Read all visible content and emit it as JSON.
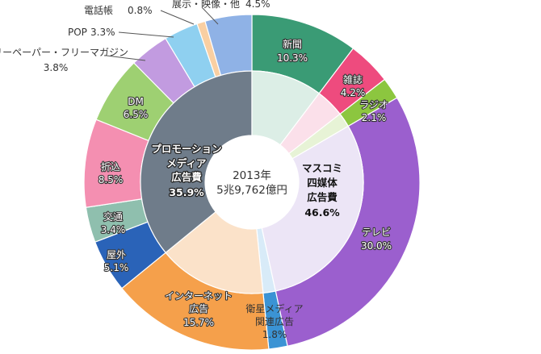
{
  "chart_data": {
    "type": "pie",
    "center_label": [
      "2013年",
      "5兆9,762億円"
    ],
    "outer": [
      {
        "name": "新聞",
        "value": 10.3,
        "color": "#3a9b75"
      },
      {
        "name": "雑誌",
        "value": 4.2,
        "color": "#ee4b7e"
      },
      {
        "name": "ラジオ",
        "value": 2.1,
        "color": "#8cc63f"
      },
      {
        "name": "テレビ",
        "value": 30.0,
        "color": "#9b5fce"
      },
      {
        "name": "衛星メディア関連広告",
        "value": 1.8,
        "color": "#3b93d4"
      },
      {
        "name": "インターネット広告",
        "value": 15.7,
        "color": "#f5a04b"
      },
      {
        "name": "屋外",
        "value": 5.1,
        "color": "#2a63b8"
      },
      {
        "name": "交通",
        "value": 3.4,
        "color": "#8fbfae"
      },
      {
        "name": "折込",
        "value": 8.5,
        "color": "#f48fb1"
      },
      {
        "name": "DM",
        "value": 6.5,
        "color": "#9ed072"
      },
      {
        "name": "フリーペーパー・フリーマガジン",
        "value": 3.8,
        "color": "#c29be0"
      },
      {
        "name": "POP",
        "value": 3.3,
        "color": "#8fd0f0"
      },
      {
        "name": "電話帳",
        "value": 0.8,
        "color": "#f9cfa2"
      },
      {
        "name": "展示・映像・他",
        "value": 4.5,
        "color": "#8fb2e6"
      }
    ],
    "inner": [
      {
        "name": "マスコミ四媒体広告費",
        "value": 46.6,
        "color": "#ffffff"
      },
      {
        "name": "衛星メディア関連広告",
        "value": 1.8,
        "color": "#ffffff"
      },
      {
        "name": "インターネット広告",
        "value": 15.7,
        "color": "#ffffff"
      },
      {
        "name": "プロモーションメディア広告費",
        "value": 35.9,
        "color": "#6f7c8a"
      }
    ],
    "labels": {
      "newspaper": [
        "新聞",
        "10.3%"
      ],
      "magazine": [
        "雑誌",
        "4.2%"
      ],
      "radio": [
        "ラジオ",
        "2.1%"
      ],
      "tv": [
        "テレビ",
        "30.0%"
      ],
      "satellite": [
        "衛星メディア",
        "関連広告",
        "1.8%"
      ],
      "internet": [
        "インターネット",
        "広告",
        "15.7%"
      ],
      "outdoor": [
        "屋外",
        "5.1%"
      ],
      "transit": [
        "交通",
        "3.4%"
      ],
      "insert": [
        "折込",
        "8.5%"
      ],
      "dm": [
        "DM",
        "6.5%"
      ],
      "freepaper": [
        "フリーペーパー・フリーマガジン",
        "3.8%"
      ],
      "pop": [
        "POP",
        "3.3%"
      ],
      "phonebook": [
        "電話帳",
        "0.8%"
      ],
      "exhibition": [
        "展示・映像・他",
        "4.5%"
      ],
      "mass_group": [
        "マスコミ",
        "四媒体",
        "広告費",
        "46.6%"
      ],
      "promo_group": [
        "プロモーション",
        "メディア",
        "広告費",
        "35.9%"
      ]
    }
  }
}
